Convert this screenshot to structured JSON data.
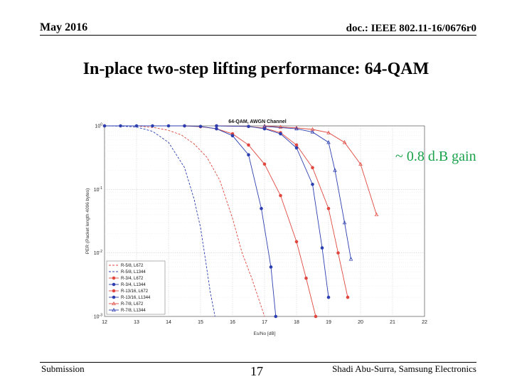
{
  "header": {
    "date": "May 2016",
    "doc_id": "doc.: IEEE 802.11-16/0676r0"
  },
  "slide": {
    "title": "In-place two-step lifting performance: 64-QAM",
    "note": "~ 0.8 d.B gain"
  },
  "footer": {
    "left": "Submission",
    "page": "17",
    "right": "Shadi Abu-Surra, Samsung Electronics"
  },
  "colors": {
    "red": "#e0473f",
    "blue": "#2c3fb0",
    "note": "#1aa34a"
  },
  "chart_data": {
    "type": "line",
    "title": "64-QAM, AWGN Channel",
    "xlabel": "Es/No [dB]",
    "ylabel": "PER (Packet length 4096 bytes)",
    "yscale": "log",
    "xlim": [
      12,
      22
    ],
    "ylim": [
      0.001,
      1
    ],
    "xticks": [
      "12",
      "13",
      "14",
      "15",
      "16",
      "17",
      "18",
      "19",
      "20",
      "21",
      "22"
    ],
    "yticks": [
      "10^-3",
      "10^-2",
      "10^-1",
      "10^0"
    ],
    "grid": true,
    "legend_position": "bottom-left",
    "series": [
      {
        "name": "R-5/8, L672",
        "color": "#e0473f",
        "dash": "dashed",
        "marker": "none",
        "x": [
          12.0,
          13.0,
          13.6,
          14.0,
          14.4,
          14.8,
          15.2,
          15.6,
          16.0,
          16.3,
          16.6,
          16.8,
          17.0
        ],
        "y": [
          1.0,
          1.0,
          0.93,
          0.85,
          0.72,
          0.52,
          0.32,
          0.14,
          0.035,
          0.01,
          0.004,
          0.002,
          0.001
        ]
      },
      {
        "name": "R-5/8, L1344",
        "color": "#2c3fb0",
        "dash": "dashed",
        "marker": "none",
        "x": [
          12.0,
          12.5,
          13.0,
          13.5,
          14.0,
          14.5,
          14.8,
          15.0,
          15.15,
          15.3,
          15.45
        ],
        "y": [
          1.0,
          0.99,
          0.96,
          0.82,
          0.55,
          0.22,
          0.07,
          0.025,
          0.008,
          0.0025,
          0.001
        ]
      },
      {
        "name": "R-3/4, L672",
        "color": "#e0473f",
        "dash": "solid",
        "marker": "dot",
        "x": [
          12.0,
          14.5,
          15.0,
          15.5,
          16.0,
          16.5,
          17.0,
          17.5,
          18.0,
          18.3,
          18.6
        ],
        "y": [
          1.0,
          1.0,
          0.97,
          0.9,
          0.75,
          0.5,
          0.25,
          0.08,
          0.015,
          0.004,
          0.001
        ]
      },
      {
        "name": "R-3/4, L1344",
        "color": "#2c3fb0",
        "dash": "solid",
        "marker": "dot",
        "x": [
          12.0,
          12.5,
          13.0,
          13.5,
          14.0,
          14.5,
          15.0,
          15.5,
          16.0,
          16.5,
          16.9,
          17.2,
          17.35
        ],
        "y": [
          1.0,
          1.0,
          1.0,
          1.0,
          1.0,
          1.0,
          0.98,
          0.9,
          0.7,
          0.35,
          0.05,
          0.006,
          0.001
        ]
      },
      {
        "name": "R-13/16, L672",
        "color": "#e0473f",
        "dash": "solid",
        "marker": "dot",
        "x": [
          15.5,
          16.5,
          17.0,
          17.5,
          18.0,
          18.5,
          19.0,
          19.3,
          19.6
        ],
        "y": [
          1.0,
          0.98,
          0.92,
          0.78,
          0.5,
          0.22,
          0.05,
          0.01,
          0.002
        ]
      },
      {
        "name": "R-13/16, L1344",
        "color": "#2c3fb0",
        "dash": "solid",
        "marker": "dot",
        "x": [
          15.5,
          16.5,
          17.0,
          17.5,
          18.0,
          18.5,
          18.8,
          19.0
        ],
        "y": [
          1.0,
          0.98,
          0.9,
          0.75,
          0.45,
          0.12,
          0.012,
          0.002
        ]
      },
      {
        "name": "R-7/8, L672",
        "color": "#e0473f",
        "dash": "solid",
        "marker": "triangle",
        "x": [
          17.0,
          17.5,
          18.0,
          18.5,
          19.0,
          19.5,
          20.0,
          20.5
        ],
        "y": [
          1.0,
          0.96,
          0.93,
          0.88,
          0.78,
          0.55,
          0.25,
          0.04
        ]
      },
      {
        "name": "R-7/8, L1344",
        "color": "#2c3fb0",
        "dash": "solid",
        "marker": "triangle",
        "x": [
          17.0,
          18.0,
          18.5,
          19.0,
          19.2,
          19.5,
          19.7
        ],
        "y": [
          0.98,
          0.9,
          0.8,
          0.55,
          0.2,
          0.03,
          0.008
        ]
      }
    ]
  }
}
